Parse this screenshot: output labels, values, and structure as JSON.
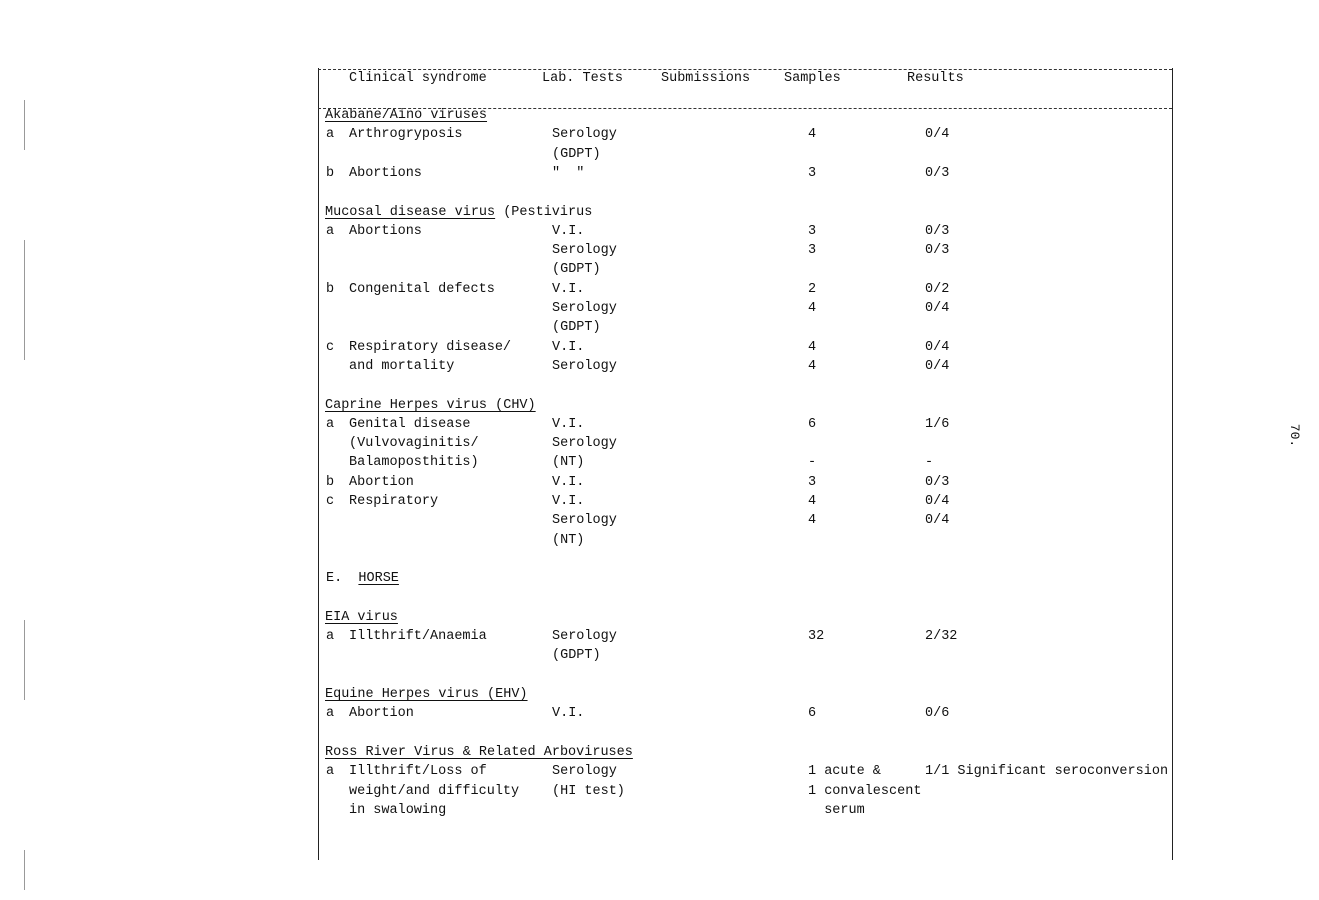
{
  "header": {
    "clinical_syndrome": "Clinical syndrome",
    "lab_tests": "Lab. Tests",
    "submissions": "Submissions",
    "samples": "Samples",
    "results": "Results"
  },
  "rows": [
    {
      "heading": "Akabane/Aino viruses"
    },
    {
      "letter": "a",
      "syndrome": "Arthrogryposis",
      "lab": "Serology",
      "samples": "4",
      "results": "0/4"
    },
    {
      "lab": "(GDPT)"
    },
    {
      "letter": "b",
      "syndrome": "Abortions",
      "lab": "\"  \"",
      "samples": "3",
      "results": "0/3"
    },
    {},
    {
      "heading": "Mucosal disease virus",
      "heading_suffix": " (Pestivirus"
    },
    {
      "letter": "a",
      "syndrome": "Abortions",
      "lab": "V.I.",
      "samples": "3",
      "results": "0/3"
    },
    {
      "lab": "Serology",
      "samples": "3",
      "results": "0/3"
    },
    {
      "lab": "(GDPT)"
    },
    {
      "letter": "b",
      "syndrome": "Congenital defects",
      "lab": "V.I.",
      "samples": "2",
      "results": "0/2"
    },
    {
      "lab": "Serology",
      "samples": "4",
      "results": "0/4"
    },
    {
      "lab": "(GDPT)"
    },
    {
      "letter": "c",
      "syndrome": "Respiratory disease/",
      "lab": "V.I.",
      "samples": "4",
      "results": "0/4"
    },
    {
      "syndrome": "and mortality",
      "lab": "Serology",
      "samples": "4",
      "results": "0/4"
    },
    {},
    {
      "heading": "Caprine Herpes virus (CHV)"
    },
    {
      "letter": "a",
      "syndrome": "Genital disease",
      "lab": "V.I.",
      "samples": "6",
      "results": "1/6"
    },
    {
      "syndrome": "(Vulvovaginitis/",
      "lab": "Serology"
    },
    {
      "syndrome": "Balamoposthitis)",
      "lab": "(NT)",
      "samples": "-",
      "results": "-"
    },
    {
      "letter": "b",
      "syndrome": "Abortion",
      "lab": "V.I.",
      "samples": "3",
      "results": "0/3"
    },
    {
      "letter": "c",
      "syndrome": "Respiratory",
      "lab": "V.I.",
      "samples": "4",
      "results": "0/4"
    },
    {
      "lab": "Serology",
      "samples": "4",
      "results": "0/4"
    },
    {
      "lab": "(NT)"
    },
    {},
    {
      "section_prefix": "E.  ",
      "section": "HORSE"
    },
    {},
    {
      "heading": "EIA virus"
    },
    {
      "letter": "a",
      "syndrome": "Illthrift/Anaemia",
      "lab": "Serology",
      "samples": "32",
      "results": "2/32"
    },
    {
      "lab": "(GDPT)"
    },
    {},
    {
      "heading": "Equine Herpes virus (EHV)"
    },
    {
      "letter": "a",
      "syndrome": "Abortion",
      "lab": "V.I.",
      "samples": "6",
      "results": "0/6"
    },
    {},
    {
      "heading": "Ross River Virus & Related Arboviruses"
    },
    {
      "letter": "a",
      "syndrome": "Illthrift/Loss of",
      "lab": "Serology",
      "samples": "1 acute &",
      "results": "1/1 Significant seroconversion"
    },
    {
      "syndrome": "weight/and difficulty",
      "lab": "(HI test)",
      "samples": "1 convalescent"
    },
    {
      "syndrome": "in swalowing",
      "samples": "  serum"
    }
  ],
  "page_number": "70."
}
